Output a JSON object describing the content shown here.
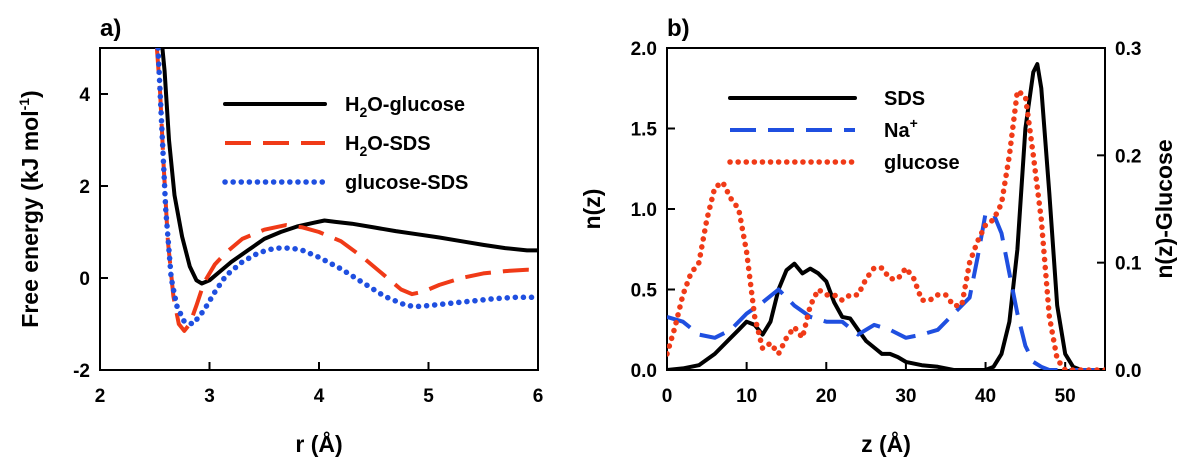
{
  "chart_data": [
    {
      "panel_label": "a)",
      "type": "line",
      "xlabel": "r (Å)",
      "ylabel": "Free energy (kJ mol-1)",
      "ylabel_parts": {
        "main": "Free energy (kJ mol",
        "sup": "-1",
        "tail": ")"
      },
      "xlim": [
        2,
        6
      ],
      "ylim": [
        -2,
        5
      ],
      "xticks": [
        2,
        3,
        4,
        5,
        6
      ],
      "yticks": [
        -2,
        0,
        2,
        4
      ],
      "legend_position": "top-right",
      "series": [
        {
          "name": "H2O-glucose",
          "name_parts": {
            "pre": "H",
            "sub": "2",
            "post": "O-glucose"
          },
          "color": "#000000",
          "dash": "solid",
          "x": [
            2.57,
            2.59,
            2.63,
            2.68,
            2.75,
            2.82,
            2.88,
            2.93,
            3.0,
            3.1,
            3.2,
            3.35,
            3.5,
            3.65,
            3.8,
            3.95,
            4.05,
            4.15,
            4.3,
            4.5,
            4.7,
            4.9,
            5.1,
            5.3,
            5.5,
            5.7,
            5.9,
            6.0
          ],
          "y": [
            5.0,
            4.5,
            3.0,
            1.8,
            0.9,
            0.25,
            -0.05,
            -0.12,
            -0.05,
            0.15,
            0.35,
            0.6,
            0.85,
            1.0,
            1.12,
            1.2,
            1.25,
            1.22,
            1.18,
            1.1,
            1.02,
            0.95,
            0.88,
            0.8,
            0.72,
            0.65,
            0.6,
            0.6
          ]
        },
        {
          "name": "H2O-SDS",
          "name_parts": {
            "pre": "H",
            "sub": "2",
            "post": "O-SDS"
          },
          "color": "#f03a17",
          "dash": "long",
          "x": [
            2.52,
            2.55,
            2.58,
            2.62,
            2.67,
            2.72,
            2.77,
            2.82,
            2.88,
            2.95,
            3.05,
            3.15,
            3.3,
            3.5,
            3.7,
            3.85,
            4.0,
            4.2,
            4.4,
            4.6,
            4.75,
            4.85,
            4.95,
            5.1,
            5.3,
            5.5,
            5.7,
            5.9,
            6.0
          ],
          "y": [
            5.0,
            4.0,
            2.5,
            0.8,
            -0.4,
            -1.0,
            -1.15,
            -1.0,
            -0.6,
            -0.1,
            0.3,
            0.55,
            0.85,
            1.05,
            1.15,
            1.1,
            1.0,
            0.8,
            0.45,
            0.05,
            -0.25,
            -0.35,
            -0.3,
            -0.15,
            0.0,
            0.1,
            0.15,
            0.18,
            0.17
          ]
        },
        {
          "name": "glucose-SDS",
          "name_parts": {
            "pre": "glucose-SDS",
            "sub": "",
            "post": ""
          },
          "color": "#1f4fe0",
          "dash": "dot",
          "x": [
            2.53,
            2.56,
            2.6,
            2.65,
            2.7,
            2.77,
            2.85,
            2.95,
            3.05,
            3.15,
            3.3,
            3.45,
            3.6,
            3.75,
            3.85,
            4.0,
            4.2,
            4.4,
            4.6,
            4.8,
            4.9,
            5.0,
            5.2,
            5.4,
            5.6,
            5.8,
            6.0
          ],
          "y": [
            5.0,
            3.5,
            1.5,
            0.0,
            -0.6,
            -0.95,
            -1.0,
            -0.7,
            -0.3,
            0.05,
            0.35,
            0.55,
            0.65,
            0.65,
            0.6,
            0.45,
            0.2,
            -0.1,
            -0.4,
            -0.6,
            -0.62,
            -0.6,
            -0.55,
            -0.5,
            -0.45,
            -0.42,
            -0.42
          ]
        }
      ]
    },
    {
      "panel_label": "b)",
      "type": "line",
      "xlabel": "z (Å)",
      "ylabel": "n(z)",
      "y2label": "n(z)-Glucose",
      "xlim": [
        0,
        55
      ],
      "ylim": [
        0,
        2
      ],
      "y2lim": [
        0,
        0.3
      ],
      "xticks": [
        0,
        10,
        20,
        30,
        40,
        50
      ],
      "yticks": [
        0.0,
        0.5,
        1.0,
        1.5,
        2.0
      ],
      "y2ticks": [
        0.0,
        0.1,
        0.2,
        0.3
      ],
      "ytick_labels": [
        "0.0",
        "0.5",
        "1.0",
        "1.5",
        "2.0"
      ],
      "y2tick_labels": [
        "0.0",
        "0.1",
        "0.2",
        "0.3"
      ],
      "legend_position": "top-left",
      "series": [
        {
          "name": "SDS",
          "name_parts": {
            "pre": "SDS",
            "sup": ""
          },
          "color": "#000000",
          "dash": "solid",
          "axis": "left",
          "x": [
            0,
            2,
            4,
            6,
            8,
            9,
            10,
            11,
            12,
            13,
            14,
            15,
            16,
            17,
            18,
            19,
            20,
            21,
            22,
            23,
            24,
            25,
            26,
            27,
            28,
            29,
            30,
            32,
            34,
            36,
            38,
            40,
            41,
            42,
            43,
            44,
            45,
            46,
            46.5,
            47,
            48,
            49,
            50,
            51,
            52,
            55
          ],
          "y": [
            0.0,
            0.01,
            0.03,
            0.1,
            0.2,
            0.25,
            0.3,
            0.28,
            0.22,
            0.3,
            0.5,
            0.62,
            0.66,
            0.6,
            0.63,
            0.6,
            0.55,
            0.42,
            0.33,
            0.32,
            0.25,
            0.18,
            0.14,
            0.1,
            0.1,
            0.08,
            0.05,
            0.03,
            0.02,
            0.0,
            0.0,
            0.0,
            0.02,
            0.1,
            0.3,
            0.75,
            1.5,
            1.85,
            1.9,
            1.75,
            1.1,
            0.4,
            0.1,
            0.02,
            0.0,
            0.0
          ]
        },
        {
          "name": "Na+",
          "name_parts": {
            "pre": "Na",
            "sup": "+"
          },
          "color": "#1f4fe0",
          "dash": "long",
          "axis": "left",
          "x": [
            0,
            2,
            4,
            6,
            8,
            10,
            12,
            14,
            16,
            18,
            20,
            22,
            24,
            26,
            28,
            30,
            32,
            34,
            36,
            37,
            38,
            39,
            40,
            41,
            42,
            43,
            44,
            45,
            46,
            47,
            48,
            50,
            52,
            55
          ],
          "y": [
            0.33,
            0.3,
            0.22,
            0.2,
            0.25,
            0.35,
            0.42,
            0.5,
            0.4,
            0.33,
            0.3,
            0.3,
            0.22,
            0.28,
            0.25,
            0.2,
            0.22,
            0.25,
            0.35,
            0.4,
            0.45,
            0.7,
            0.97,
            0.97,
            0.85,
            0.6,
            0.35,
            0.15,
            0.05,
            0.02,
            0.0,
            0.0,
            0.0,
            0.0
          ]
        },
        {
          "name": "glucose",
          "name_parts": {
            "pre": "glucose",
            "sup": ""
          },
          "color": "#f03a17",
          "dash": "dot",
          "axis": "right",
          "x": [
            0,
            1,
            2,
            3,
            4,
            5,
            6,
            7,
            8,
            9,
            10,
            11,
            12,
            13,
            14,
            15,
            16,
            17,
            18,
            19,
            20,
            21,
            22,
            23,
            24,
            25,
            26,
            27,
            28,
            29,
            30,
            31,
            32,
            33,
            34,
            35,
            36,
            37,
            38,
            39,
            40,
            41,
            42,
            43,
            44,
            45,
            46,
            47,
            48,
            49,
            50,
            51,
            52,
            55
          ],
          "y": [
            0.015,
            0.04,
            0.07,
            0.09,
            0.1,
            0.14,
            0.17,
            0.175,
            0.16,
            0.15,
            0.11,
            0.05,
            0.02,
            0.025,
            0.015,
            0.03,
            0.04,
            0.03,
            0.06,
            0.075,
            0.07,
            0.07,
            0.065,
            0.07,
            0.07,
            0.085,
            0.095,
            0.095,
            0.085,
            0.085,
            0.095,
            0.085,
            0.065,
            0.065,
            0.07,
            0.07,
            0.06,
            0.06,
            0.1,
            0.12,
            0.135,
            0.14,
            0.155,
            0.2,
            0.26,
            0.255,
            0.2,
            0.14,
            0.05,
            0.01,
            0.0,
            0.0,
            0.0,
            0.0
          ]
        }
      ]
    }
  ]
}
